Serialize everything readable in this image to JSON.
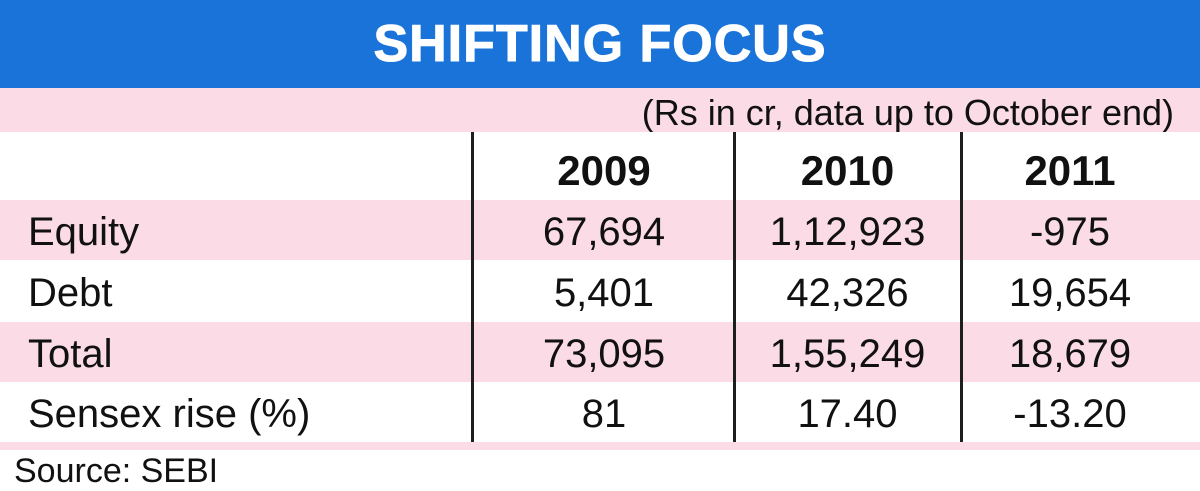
{
  "title": "SHIFTING FOCUS",
  "units_note": "(Rs in cr, data up to October end)",
  "source": "Source: SEBI",
  "colors": {
    "title_bg": "#1a73d9",
    "title_fg": "#ffffff",
    "pink_band": "#fbdbe6"
  },
  "chart_data": {
    "type": "table",
    "title": "SHIFTING FOCUS",
    "columns": [
      "2009",
      "2010",
      "2011"
    ],
    "rows": [
      {
        "label": "Equity",
        "values": [
          "67,694",
          "1,12,923",
          "-975"
        ]
      },
      {
        "label": "Debt",
        "values": [
          "5,401",
          "42,326",
          "19,654"
        ]
      },
      {
        "label": "Total",
        "values": [
          "73,095",
          "1,55,249",
          "18,679"
        ]
      },
      {
        "label": "Sensex rise (%)",
        "values": [
          "81",
          "17.40",
          "-13.20"
        ]
      }
    ]
  }
}
